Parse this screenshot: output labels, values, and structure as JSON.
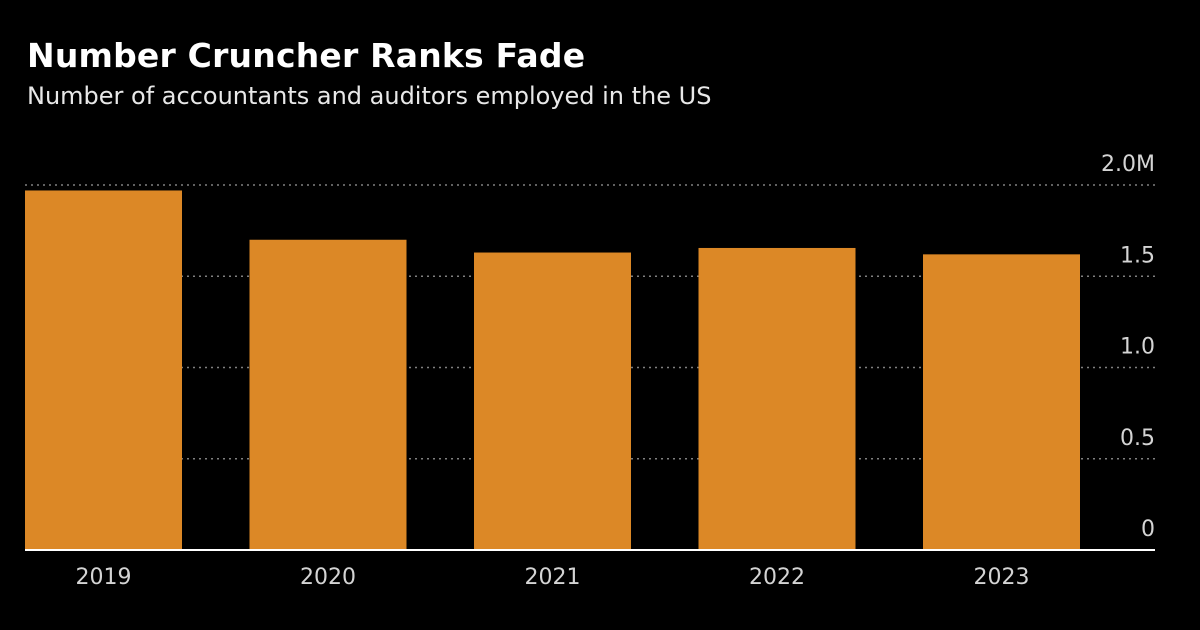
{
  "title": "Number Cruncher Ranks Fade",
  "subtitle": "Number of accountants and auditors employed in the US",
  "colors": {
    "background": "#000000",
    "bar": "#dc8826",
    "grid": "#808080",
    "baseline": "#ffffff",
    "text": "#d4d4d4"
  },
  "chart_data": {
    "type": "bar",
    "categories": [
      "2019",
      "2020",
      "2021",
      "2022",
      "2023"
    ],
    "values": [
      1.97,
      1.7,
      1.63,
      1.655,
      1.62
    ],
    "ylim": [
      0,
      2.0
    ],
    "yticks": [
      {
        "value": 0,
        "label": "0"
      },
      {
        "value": 0.5,
        "label": "0.5"
      },
      {
        "value": 1.0,
        "label": "1.0"
      },
      {
        "value": 1.5,
        "label": "1.5"
      },
      {
        "value": 2.0,
        "label": "2.0M"
      }
    ],
    "xlabel": "",
    "ylabel": "",
    "grid": "horizontal-dotted",
    "y_axis_position": "right",
    "legend": "none"
  }
}
